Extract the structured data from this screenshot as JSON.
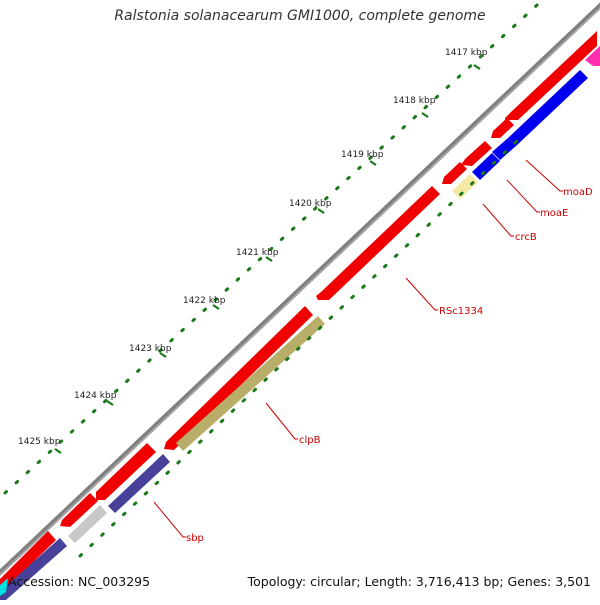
{
  "title": "Ralstonia solanacearum GMI1000, complete genome",
  "footer": {
    "accession": "Accession: NC_003295",
    "summary": "Topology: circular; Length: 3,716,413 bp; Genes: 3,501"
  },
  "ticks": [
    {
      "label": "1417 kbp"
    },
    {
      "label": "1418 kbp"
    },
    {
      "label": "1419 kbp"
    },
    {
      "label": "1420 kbp"
    },
    {
      "label": "1421 kbp"
    },
    {
      "label": "1422 kbp"
    },
    {
      "label": "1423 kbp"
    },
    {
      "label": "1424 kbp"
    },
    {
      "label": "1425 kbp"
    }
  ],
  "genes": [
    {
      "name": "moaD"
    },
    {
      "name": "moaE"
    },
    {
      "name": "crcB"
    },
    {
      "name": "RSc1334"
    },
    {
      "name": "clpB"
    },
    {
      "name": "sbp"
    }
  ],
  "colors": {
    "backbone": "#808080",
    "forward_gene": "#ff0000",
    "reverse_blue": "#0000ff",
    "reverse_olive": "#b8ae6a",
    "reverse_pale": "#f4eaa6",
    "reverse_purple": "#48419a",
    "reverse_gray": "#c8c8c8",
    "tick_green": "#1a7a1a",
    "label_red": "#cc0000"
  }
}
